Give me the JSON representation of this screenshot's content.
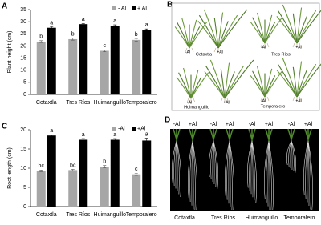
{
  "chart_data": [
    {
      "type": "bar",
      "panel": "A",
      "ylabel": "Plant height (cm)",
      "categories": [
        "Cotaxtla",
        "Tres Ríos",
        "Huimanguillo",
        "Temporalero"
      ],
      "series": [
        {
          "name": "- Al",
          "color": "#a6a6a6",
          "values": [
            21.8,
            22.8,
            18,
            22.5
          ],
          "errors": [
            0.4,
            0.4,
            0.4,
            0.6
          ],
          "annotations": [
            "b",
            "b",
            "c",
            "b"
          ]
        },
        {
          "name": "+ Al",
          "color": "#000000",
          "values": [
            27.5,
            29,
            28.3,
            26.5
          ],
          "errors": [
            0.4,
            0.3,
            0.4,
            0.5
          ],
          "annotations": [
            "a",
            "a",
            "a",
            "a"
          ]
        }
      ],
      "ylim": [
        0,
        35
      ],
      "yticks": [
        0,
        5,
        10,
        15,
        20,
        25,
        30,
        35
      ]
    },
    {
      "type": "bar",
      "panel": "C",
      "ylabel": "Root length (cm)",
      "categories": [
        "Cotaxtla",
        "Tres Ríos",
        "Huimanguillo",
        "Temporalero"
      ],
      "series": [
        {
          "name": "-Al",
          "color": "#a6a6a6",
          "values": [
            9.3,
            9.5,
            10.4,
            8.4
          ],
          "errors": [
            0.2,
            0.2,
            0.3,
            0.3
          ],
          "annotations": [
            "bc",
            "bc",
            "b",
            "c"
          ]
        },
        {
          "name": "+Al",
          "color": "#000000",
          "values": [
            18.5,
            17.4,
            17.4,
            17.2
          ],
          "errors": [
            0.2,
            0.3,
            0.3,
            0.6
          ],
          "annotations": [
            "a",
            "a",
            "a",
            "a"
          ]
        }
      ],
      "ylim": [
        0,
        20
      ],
      "yticks": [
        0,
        5,
        10,
        15,
        20
      ]
    }
  ],
  "photos": [
    {
      "panel": "B",
      "treatments": [
        "-Al",
        "+Al"
      ],
      "varieties": [
        "Cotaxtla",
        "Tres Ríos",
        "Huimanguillo",
        "Temporalero"
      ]
    },
    {
      "panel": "D",
      "treatments": [
        "-Al",
        "+Al"
      ],
      "varieties": [
        "Cotaxtla",
        "Tres Ríos",
        "Huimanguillo",
        "Temporalero"
      ]
    }
  ]
}
